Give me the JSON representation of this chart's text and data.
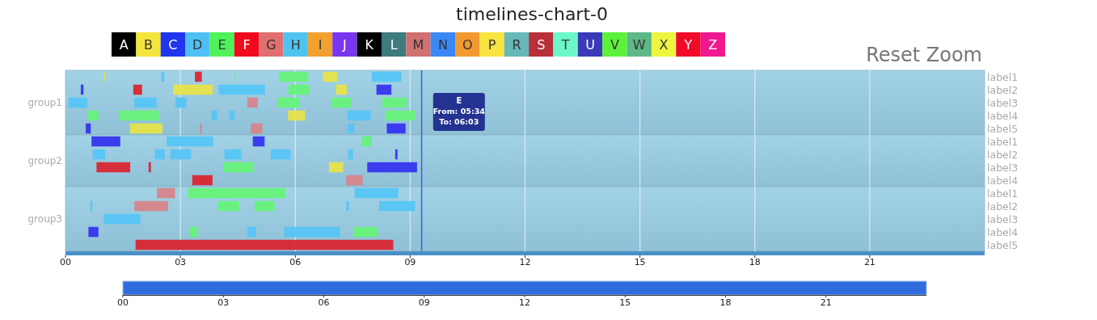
{
  "chart_data": [
    {
      "type": "other",
      "title": "timelines-chart-0",
      "categories": [
        "A",
        "B",
        "C",
        "D",
        "E",
        "F",
        "G",
        "H",
        "I",
        "J",
        "K",
        "L",
        "M",
        "N",
        "O",
        "P",
        "R",
        "S",
        "T",
        "U",
        "V",
        "W",
        "X",
        "Y",
        "Z"
      ],
      "colors": [
        "#000000",
        "#f5e43a",
        "#2035f0",
        "#4ec0f5",
        "#4ff25a",
        "#f00a1e",
        "#e07070",
        "#4fc3f0",
        "#f2a02e",
        "#7a35f0",
        "#000000",
        "#3f7a7f",
        "#d07070",
        "#3a88f5",
        "#f29a30",
        "#f8e340",
        "#68b8b8",
        "#b8303a",
        "#6cf8c8",
        "#3a3ab8",
        "#5cf23c",
        "#5eb888",
        "#eef540",
        "#f00a28",
        "#f01890"
      ]
    },
    {
      "type": "bar",
      "orientation": "horizontal",
      "ylabel": "group1",
      "categories": [
        "label1",
        "label2",
        "label3",
        "label4",
        "label5"
      ],
      "xlim": [
        0,
        24
      ],
      "xticks": [
        0,
        3,
        6,
        9,
        12,
        15,
        18,
        21
      ],
      "grid": "x",
      "tick_labels": "y",
      "ref_lines": [
        {
          "axis": "x",
          "value": 9.3,
          "color": "#3f5fd6"
        }
      ],
      "annotations": [
        "Reset Zoom",
        "E\nFrom: 05:34\nTo: 06:03"
      ],
      "series": [
        {
          "base": [
            1.0,
            0.4,
            0.08,
            0.59,
            0.53
          ],
          "values": [
            0.03,
            0.07,
            0.49,
            0.27,
            0.13
          ],
          "colors": [
            "#e6e34a",
            "#3535ee",
            "#56c5f5",
            "#66f27a",
            "#3535ee"
          ]
        },
        {
          "base": [
            2.5,
            1.77,
            1.8,
            1.4,
            1.69
          ],
          "values": [
            0.08,
            0.23,
            0.58,
            1.04,
            0.84
          ],
          "colors": [
            "#56c5f5",
            "#d92632",
            "#56c5f5",
            "#66f27a",
            "#e6e34a"
          ]
        },
        {
          "base": [
            3.38,
            2.81,
            2.87,
            3.82,
            3.51
          ],
          "values": [
            0.18,
            1.04,
            0.29,
            0.15,
            0.05
          ],
          "colors": [
            "#d92632",
            "#e6e34a",
            "#56c5f5",
            "#56c5f5",
            "#d6858a"
          ]
        },
        {
          "base": [
            4.42,
            4.0,
            4.75,
            4.28,
            4.84
          ],
          "values": [
            0.02,
            1.21,
            0.27,
            0.13,
            0.3
          ],
          "colors": [
            "#66f27a",
            "#56c5f5",
            "#d6858a",
            "#56c5f5",
            "#d6858a"
          ]
        },
        {
          "base": [
            5.58,
            5.82,
            5.53,
            5.81,
            7.37
          ],
          "values": [
            0.76,
            0.55,
            0.58,
            0.45,
            0.17
          ],
          "colors": [
            "#66f27a",
            "#66f27a",
            "#66f27a",
            "#e6e34a",
            "#56c5f5"
          ]
        },
        {
          "base": [
            6.72,
            7.06,
            6.94,
            7.36,
            8.39
          ],
          "values": [
            0.38,
            0.29,
            0.51,
            0.61,
            0.49
          ],
          "colors": [
            "#e6e34a",
            "#e6e34a",
            "#66f27a",
            "#56c5f5",
            "#3535ee"
          ]
        },
        {
          "base": [
            8.0,
            8.12,
            8.27,
            8.35,
            null
          ],
          "values": [
            0.77,
            0.39,
            0.64,
            0.79,
            null
          ],
          "colors": [
            "#56c5f5",
            "#3535ee",
            "#66f27a",
            "#66f27a",
            null
          ]
        }
      ]
    },
    {
      "type": "bar",
      "orientation": "horizontal",
      "ylabel": "group2",
      "categories": [
        "label1",
        "label2",
        "label3",
        "label4"
      ],
      "xlim": [
        0,
        24
      ],
      "xticks": [
        0,
        3,
        6,
        9,
        12,
        15,
        18,
        21
      ],
      "grid": "x",
      "tick_labels": "y",
      "ref_lines": [
        {
          "axis": "x",
          "value": 9.3,
          "color": "#3f5fd6"
        }
      ],
      "series": [
        {
          "base": [
            0.68,
            0.71,
            0.81,
            3.31
          ],
          "values": [
            0.75,
            0.33,
            0.88,
            0.53
          ],
          "colors": [
            "#3535ee",
            "#56c5f5",
            "#d92632",
            "#d92632"
          ]
        },
        {
          "base": [
            2.64,
            2.33,
            2.17,
            7.33
          ],
          "values": [
            1.22,
            0.26,
            0.06,
            0.43
          ],
          "colors": [
            "#56c5f5",
            "#56c5f5",
            "#d92632",
            "#d6858a"
          ]
        },
        {
          "base": [
            4.89,
            2.74,
            4.13,
            null
          ],
          "values": [
            0.31,
            0.54,
            0.77,
            null
          ],
          "colors": [
            "#3535ee",
            "#56c5f5",
            "#66f27a",
            null
          ]
        },
        {
          "base": [
            7.73,
            4.15,
            6.88,
            null
          ],
          "values": [
            0.27,
            0.44,
            0.37,
            null
          ],
          "colors": [
            "#66f27a",
            "#56c5f5",
            "#e6e34a",
            null
          ]
        },
        {
          "base": [
            null,
            5.36,
            7.88,
            null
          ],
          "values": [
            null,
            0.52,
            1.3,
            null
          ],
          "colors": [
            null,
            "#56c5f5",
            "#3535ee",
            null
          ]
        },
        {
          "base": [
            null,
            7.38,
            null,
            null
          ],
          "values": [
            null,
            0.13,
            null,
            null
          ],
          "colors": [
            null,
            "#56c5f5",
            null,
            null
          ]
        },
        {
          "base": [
            null,
            8.61,
            null,
            null
          ],
          "values": [
            null,
            0.06,
            null,
            null
          ],
          "colors": [
            null,
            "#3535ee",
            null,
            null
          ]
        }
      ]
    },
    {
      "type": "bar",
      "orientation": "horizontal",
      "ylabel": "group3",
      "categories": [
        "label1",
        "label2",
        "label3",
        "label4",
        "label5"
      ],
      "xlim": [
        0,
        24
      ],
      "xticks": [
        {
          "value": 0,
          "label": "00"
        },
        {
          "value": 3,
          "label": "03"
        },
        {
          "value": 6,
          "label": "06"
        },
        {
          "value": 9,
          "label": "09"
        },
        {
          "value": 12,
          "label": "12"
        },
        {
          "value": 15,
          "label": "15"
        },
        {
          "value": 18,
          "label": "18"
        },
        {
          "value": 21,
          "label": "21"
        }
      ],
      "grid": "x",
      "ref_lines": [
        {
          "axis": "x",
          "value": 9.3,
          "color": "#3f5fd6"
        }
      ],
      "x2lim": [
        0,
        24
      ],
      "x2ticks": [
        {
          "value": 0,
          "label": "00"
        },
        {
          "value": 3,
          "label": "03"
        },
        {
          "value": 6,
          "label": "06"
        },
        {
          "value": 9,
          "label": "09"
        },
        {
          "value": 12,
          "label": "12"
        },
        {
          "value": 15,
          "label": "15"
        },
        {
          "value": 18,
          "label": "18"
        },
        {
          "value": 21,
          "label": "21"
        }
      ],
      "series": [
        {
          "base": [
            2.39,
            0.65,
            1.0,
            0.6,
            1.83
          ],
          "values": [
            0.47,
            0.05,
            0.96,
            0.26,
            6.73
          ],
          "colors": [
            "#d6858a",
            "#56c5f5",
            "#56c5f5",
            "#3535ee",
            "#d92632"
          ]
        },
        {
          "base": [
            3.2,
            1.8,
            null,
            3.25,
            null
          ],
          "values": [
            2.54,
            0.88,
            null,
            0.21,
            null
          ],
          "colors": [
            "#66f27a",
            "#d6858a",
            null,
            "#66f27a",
            null
          ]
        },
        {
          "base": [
            7.55,
            3.98,
            null,
            4.75,
            null
          ],
          "values": [
            1.14,
            0.55,
            null,
            0.22,
            null
          ],
          "colors": [
            "#56c5f5",
            "#66f27a",
            null,
            "#56c5f5",
            null
          ]
        },
        {
          "base": [
            null,
            4.94,
            null,
            5.71,
            null
          ],
          "values": [
            null,
            0.52,
            null,
            1.46,
            null
          ],
          "colors": [
            null,
            "#66f27a",
            null,
            "#56c5f5",
            null
          ]
        },
        {
          "base": [
            null,
            7.33,
            null,
            7.51,
            null
          ],
          "values": [
            null,
            0.07,
            null,
            0.64,
            null
          ],
          "colors": [
            null,
            "#56c5f5",
            null,
            "#66f27a",
            null
          ]
        },
        {
          "base": [
            null,
            8.19,
            null,
            null,
            null
          ],
          "values": [
            null,
            0.94,
            null,
            null,
            null
          ],
          "colors": [
            null,
            "#56c5f5",
            null,
            null,
            null
          ]
        }
      ]
    }
  ]
}
